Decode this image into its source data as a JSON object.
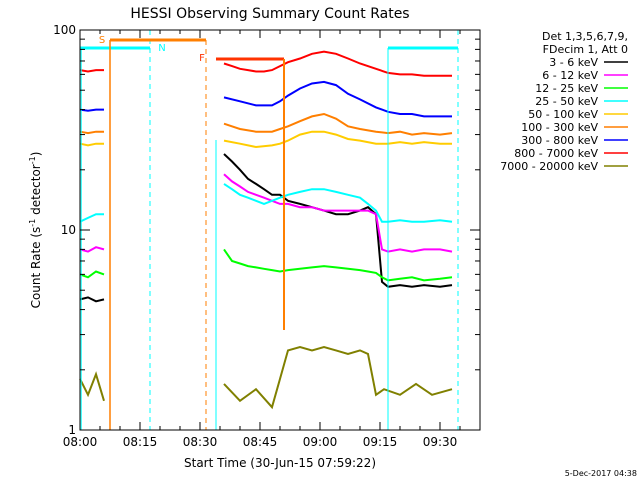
{
  "chart_data": {
    "type": "line",
    "title": "HESSI Observing Summary Count Rates",
    "xlabel": "Start Time (30-Jun-15 07:59:22)",
    "ylabel_main": "Count Rate (s",
    "ylabel_sup1": "-1",
    "ylabel_mid": " detector",
    "ylabel_sup2": "-1",
    "ylabel_end": ")",
    "yscale": "log",
    "ylim": [
      1,
      100
    ],
    "xlim_minutes": [
      0,
      100
    ],
    "x_ticks": [
      {
        "m": 0,
        "label": "08:00"
      },
      {
        "m": 15,
        "label": "08:15"
      },
      {
        "m": 30,
        "label": "08:30"
      },
      {
        "m": 45,
        "label": "08:45"
      },
      {
        "m": 60,
        "label": "09:00"
      },
      {
        "m": 75,
        "label": "09:15"
      },
      {
        "m": 90,
        "label": "09:30"
      }
    ],
    "y_ticks": [
      {
        "v": 1,
        "label": "1"
      },
      {
        "v": 10,
        "label": "10"
      },
      {
        "v": 100,
        "label": "100"
      }
    ],
    "legend_header": [
      "Det 1,3,5,6,7,9,",
      "FDecim 1, Att 0"
    ],
    "legend_position": "right",
    "series": [
      {
        "name": "3 - 6 keV",
        "color": "#000000",
        "x": [
          0,
          2,
          4,
          6,
          36,
          38,
          40,
          42,
          44,
          46,
          48,
          50,
          52,
          55,
          58,
          61,
          64,
          67,
          70,
          72,
          74,
          75.5,
          77,
          80,
          83,
          86,
          90,
          93
        ],
        "y": [
          4.5,
          4.6,
          4.4,
          4.5,
          24,
          22,
          20,
          18,
          17,
          16,
          15,
          15,
          14,
          13.5,
          13,
          12.5,
          12,
          12,
          12.5,
          13,
          12,
          5.5,
          5.2,
          5.3,
          5.2,
          5.3,
          5.2,
          5.3
        ]
      },
      {
        "name": "6 - 12 keV",
        "color": "#ff00ff",
        "x": [
          0,
          2,
          4,
          6,
          36,
          38,
          40,
          42,
          44,
          46,
          48,
          50,
          52,
          55,
          58,
          61,
          64,
          67,
          70,
          72,
          74,
          75.5,
          77,
          80,
          83,
          86,
          90,
          93
        ],
        "y": [
          8,
          7.8,
          8.2,
          8,
          19,
          17.5,
          16.5,
          15.5,
          15,
          14.5,
          14,
          13.5,
          13.5,
          13,
          13,
          12.5,
          12.5,
          12.5,
          12.5,
          12.5,
          12,
          8,
          7.8,
          8,
          7.8,
          8,
          8,
          7.8
        ]
      },
      {
        "name": "12 - 25 keV",
        "color": "#00ff00",
        "x": [
          0,
          2,
          4,
          6,
          36,
          38,
          40,
          42,
          44,
          46,
          48,
          50,
          52,
          55,
          58,
          61,
          64,
          67,
          70,
          72,
          74,
          75.5,
          77,
          80,
          83,
          86,
          90,
          93
        ],
        "y": [
          6,
          5.8,
          6.2,
          6,
          8,
          7,
          6.8,
          6.6,
          6.5,
          6.4,
          6.3,
          6.2,
          6.3,
          6.4,
          6.5,
          6.6,
          6.5,
          6.4,
          6.3,
          6.2,
          6.1,
          5.8,
          5.6,
          5.7,
          5.8,
          5.6,
          5.7,
          5.8
        ]
      },
      {
        "name": "25 - 50 keV",
        "color": "#00ffff",
        "x": [
          0,
          2,
          4,
          6,
          36,
          38,
          40,
          42,
          44,
          46,
          48,
          50,
          52,
          55,
          58,
          61,
          64,
          67,
          70,
          72,
          74,
          75.5,
          77,
          80,
          83,
          86,
          90,
          93
        ],
        "y": [
          11,
          11.5,
          12,
          12,
          17,
          16,
          15,
          14.5,
          14,
          13.5,
          14,
          14.5,
          15,
          15.5,
          16,
          16,
          15.5,
          15,
          14.5,
          13.5,
          12.5,
          11,
          11,
          11.2,
          11,
          11,
          11.2,
          11
        ]
      },
      {
        "name": "50 - 100 keV",
        "color": "#ffcc00",
        "x": [
          0,
          2,
          4,
          6,
          36,
          40,
          44,
          48,
          50,
          52,
          55,
          58,
          61,
          64,
          67,
          70,
          74,
          77,
          80,
          83,
          86,
          90,
          93
        ],
        "y": [
          27,
          26.5,
          27,
          27,
          28,
          27,
          26,
          26.5,
          27,
          28,
          30,
          31,
          31,
          30,
          28.5,
          28,
          27,
          27,
          27.5,
          27,
          27.5,
          27,
          27
        ]
      },
      {
        "name": "100 - 300 keV",
        "color": "#ff7f00",
        "x": [
          0,
          2,
          4,
          6,
          36,
          40,
          44,
          48,
          50,
          52,
          55,
          58,
          61,
          64,
          67,
          70,
          74,
          77,
          80,
          83,
          86,
          90,
          93
        ],
        "y": [
          31,
          30.5,
          31,
          31,
          34,
          32,
          31,
          31,
          32,
          33,
          35,
          37,
          38,
          36,
          33,
          32,
          31,
          30.5,
          31,
          30,
          30.5,
          30,
          30.5
        ]
      },
      {
        "name": "300 - 800 keV",
        "color": "#0000ff",
        "x": [
          0,
          2,
          4,
          6,
          36,
          40,
          44,
          48,
          50,
          52,
          55,
          58,
          61,
          64,
          67,
          70,
          74,
          77,
          80,
          83,
          86,
          90,
          93
        ],
        "y": [
          40,
          39.5,
          40,
          40,
          46,
          44,
          42,
          42,
          44,
          47,
          51,
          54,
          55,
          53,
          48,
          45,
          41,
          39,
          38,
          38,
          37,
          37,
          37
        ]
      },
      {
        "name": "800 - 7000 keV",
        "color": "#ff0000",
        "x": [
          0,
          2,
          4,
          6,
          36,
          38,
          40,
          42,
          44,
          46,
          48,
          50,
          52,
          55,
          58,
          61,
          64,
          67,
          70,
          74,
          77,
          80,
          83,
          86,
          90,
          93
        ],
        "y": [
          63,
          62,
          63,
          63,
          68,
          66,
          64,
          63,
          62,
          62,
          63,
          66,
          69,
          72,
          76,
          78,
          76,
          72,
          68,
          64,
          61,
          60,
          60,
          59,
          59,
          59
        ]
      },
      {
        "name": "7000 - 20000 keV",
        "color": "#808000",
        "x": [
          0,
          2,
          4,
          6,
          36,
          40,
          44,
          48,
          50,
          52,
          55,
          58,
          61,
          64,
          67,
          70,
          72,
          74,
          76,
          80,
          84,
          88,
          93
        ],
        "y": [
          1.8,
          1.5,
          1.9,
          1.4,
          1.7,
          1.4,
          1.6,
          1.3,
          1.8,
          2.5,
          2.6,
          2.5,
          2.6,
          2.5,
          2.4,
          2.5,
          2.4,
          1.5,
          1.6,
          1.5,
          1.7,
          1.5,
          1.6
        ]
      }
    ],
    "flags": [
      {
        "label": "S",
        "color": "#ff7f00"
      },
      {
        "label": "N",
        "color": "#00ffff"
      },
      {
        "label": "F",
        "color": "#ff3300"
      }
    ]
  },
  "footer_timestamp": "5-Dec-2017 04:38"
}
